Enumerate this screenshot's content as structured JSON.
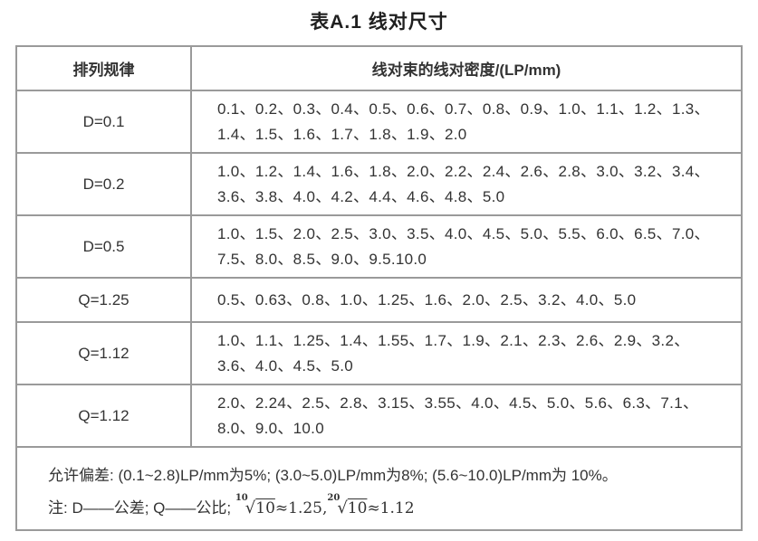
{
  "page": {
    "title": "表A.1 线对尺寸"
  },
  "table": {
    "headers": {
      "rule": "排列规律",
      "density": "线对束的线对密度/(LP/mm)"
    },
    "rows": [
      {
        "rule": "D=0.1",
        "values": "0.1、0.2、0.3、0.4、0.5、0.6、0.7、0.8、0.9、1.0、1.1、1.2、1.3、1.4、1.5、1.6、1.7、1.8、1.9、2.0"
      },
      {
        "rule": "D=0.2",
        "values": "1.0、1.2、1.4、1.6、1.8、2.0、2.2、2.4、2.6、2.8、3.0、3.2、3.4、3.6、3.8、4.0、4.2、4.4、4.6、4.8、5.0"
      },
      {
        "rule": "D=0.5",
        "values": "1.0、1.5、2.0、2.5、3.0、3.5、4.0、4.5、5.0、5.5、6.0、6.5、7.0、7.5、8.0、8.5、9.0、9.5.10.0"
      },
      {
        "rule": "Q=1.25",
        "values": "0.5、0.63、0.8、1.0、1.25、1.6、2.0、2.5、3.2、4.0、5.0"
      },
      {
        "rule": "Q=1.12",
        "values": "1.0、1.1、1.25、1.4、1.55、1.7、1.9、2.1、2.3、2.6、2.9、3.2、3.6、4.0、4.5、5.0"
      },
      {
        "rule": "Q=1.12",
        "values": "2.0、2.24、2.5、2.8、3.15、3.55、4.0、4.5、5.0、5.6、6.3、7.1、8.0、9.0、10.0"
      }
    ],
    "note": {
      "tolerance": "允许偏差: (0.1~2.8)LP/mm为5%; (3.0~5.0)LP/mm为8%; (5.6~10.0)LP/mm为 10%。",
      "legend_prefix": "注: D——公差; Q——公比; ",
      "formula": {
        "root1_index": "10",
        "root1_radicand": "10",
        "root1_result": "≈1.25,",
        "root2_index": "20",
        "root2_radicand": "10",
        "root2_result": "≈1.12"
      }
    }
  },
  "colors": {
    "border": "#9a9a9a",
    "text": "#333333",
    "title": "#1f1f1f"
  }
}
